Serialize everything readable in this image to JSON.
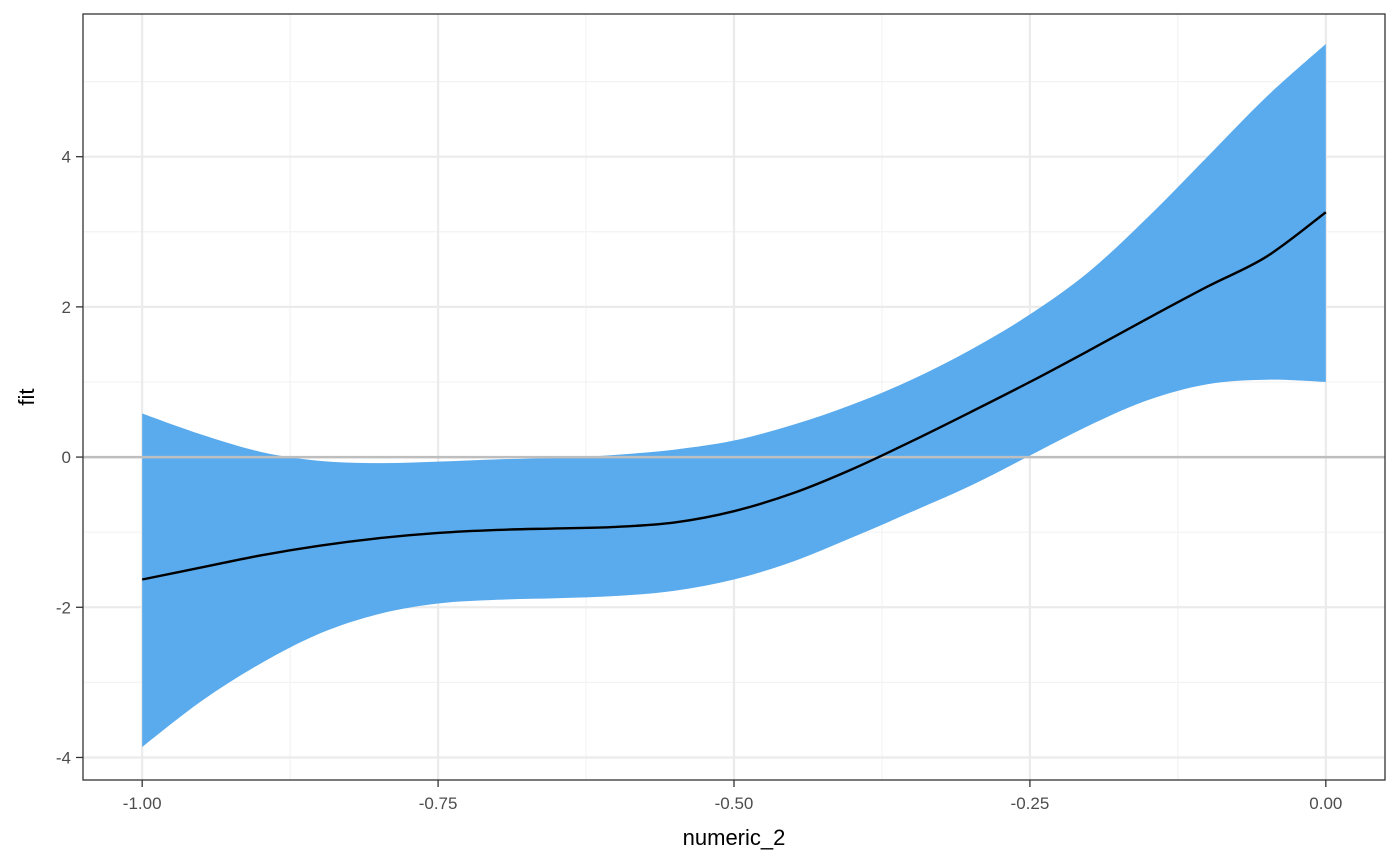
{
  "chart_data": {
    "type": "line",
    "xlabel": "numeric_2",
    "ylabel": "fit",
    "xlim": [
      -1.05,
      0.05
    ],
    "ylim": [
      -4.3,
      5.9
    ],
    "x_ticks": [
      -1.0,
      -0.75,
      -0.5,
      -0.25,
      0.0
    ],
    "x_tick_labels": [
      "-1.00",
      "-0.75",
      "-0.50",
      "-0.25",
      "0.00"
    ],
    "y_ticks": [
      -4,
      -2,
      0,
      2,
      4
    ],
    "y_tick_labels": [
      "-4",
      "-2",
      "0",
      "2",
      "4"
    ],
    "grid": true,
    "reference_line_y": 0,
    "x": [
      -1.0,
      -0.95,
      -0.9,
      -0.85,
      -0.8,
      -0.75,
      -0.7,
      -0.65,
      -0.6,
      -0.55,
      -0.5,
      -0.45,
      -0.4,
      -0.35,
      -0.3,
      -0.25,
      -0.2,
      -0.15,
      -0.1,
      -0.05,
      0.0
    ],
    "fit": [
      -1.63,
      -1.47,
      -1.31,
      -1.18,
      -1.08,
      -1.01,
      -0.97,
      -0.95,
      -0.93,
      -0.87,
      -0.72,
      -0.48,
      -0.16,
      0.21,
      0.6,
      1.0,
      1.42,
      1.85,
      2.27,
      2.67,
      3.26
    ],
    "lower": [
      -3.86,
      -3.25,
      -2.75,
      -2.35,
      -2.09,
      -1.95,
      -1.9,
      -1.88,
      -1.85,
      -1.78,
      -1.63,
      -1.39,
      -1.07,
      -0.73,
      -0.38,
      0.02,
      0.42,
      0.76,
      0.97,
      1.03,
      1.0
    ],
    "upper": [
      0.58,
      0.3,
      0.07,
      -0.05,
      -0.08,
      -0.06,
      -0.03,
      -0.01,
      0.03,
      0.1,
      0.22,
      0.43,
      0.7,
      1.03,
      1.43,
      1.9,
      2.47,
      3.2,
      4.0,
      4.8,
      5.5
    ],
    "colors": {
      "band": "#5aabed",
      "line": "#000000",
      "reference_line": "#bebebe",
      "grid_major": "#ebebeb",
      "grid_minor": "#f3f3f3",
      "panel_border": "#333333"
    }
  }
}
